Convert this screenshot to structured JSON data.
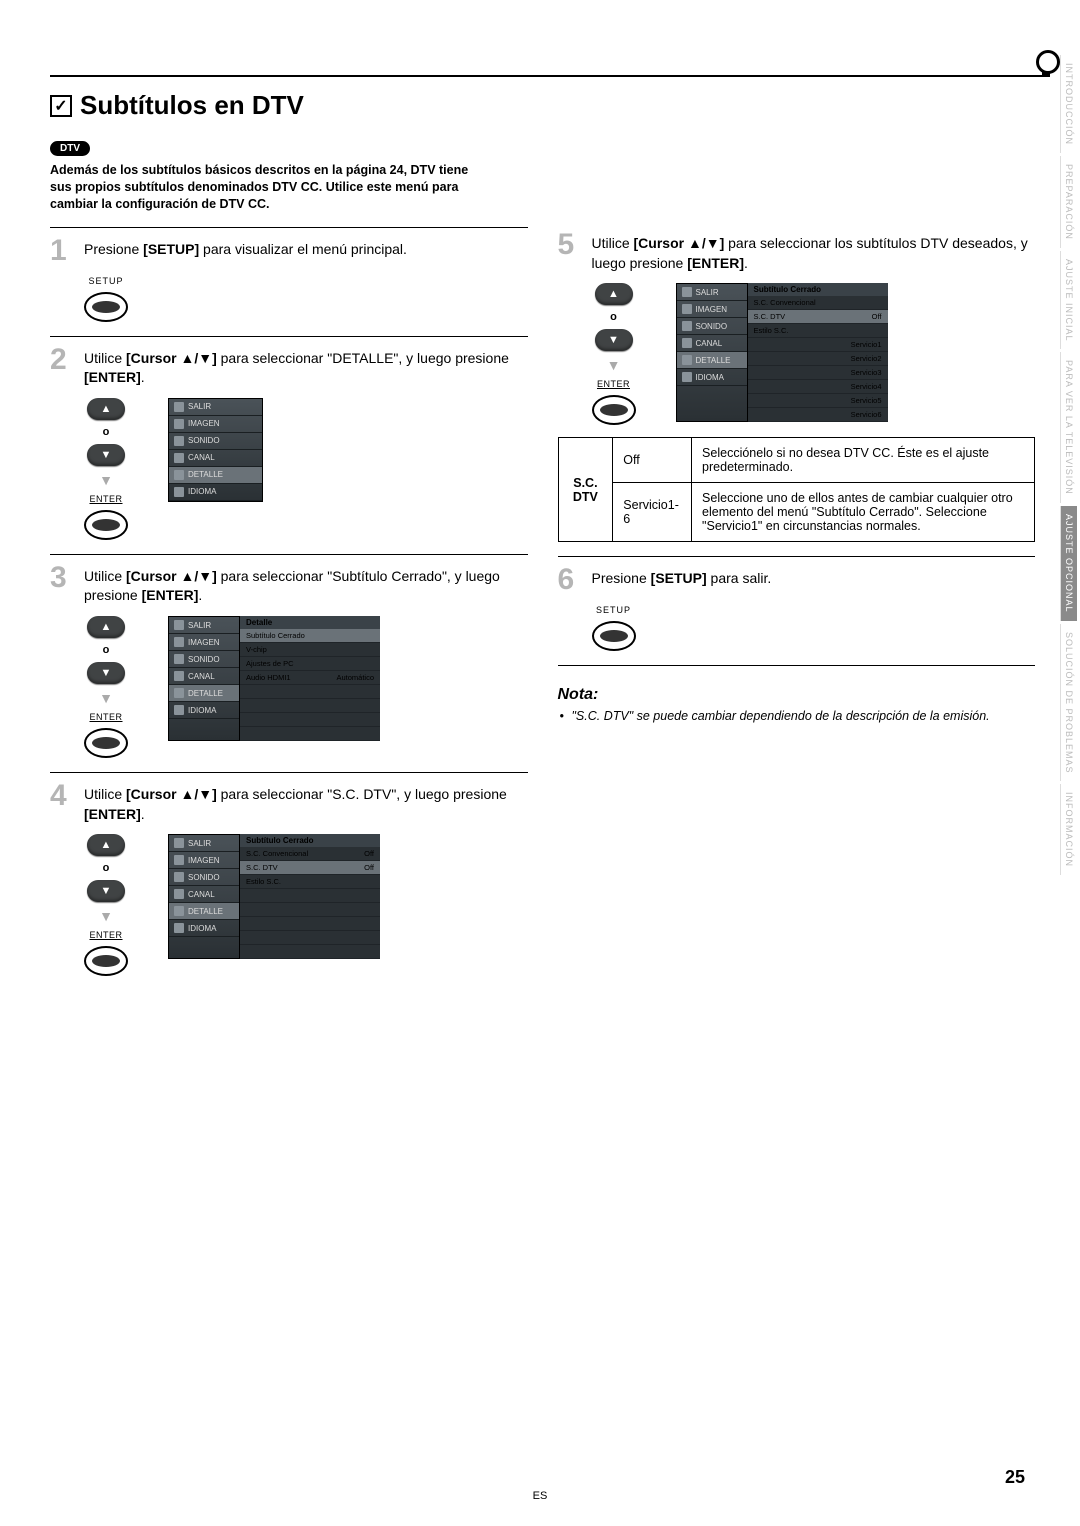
{
  "page": {
    "title": "Subtítulos en DTV",
    "badge": "DTV",
    "intro": "Además de los subtítulos básicos descritos en la página 24, DTV tiene sus propios subtítulos denominados DTV CC. Utilice este menú para cambiar la configuración de DTV CC.",
    "page_num": "25",
    "footer_lang": "ES"
  },
  "tabs": [
    {
      "label": "INTRODUCCIÓN",
      "active": false
    },
    {
      "label": "PREPARACIÓN",
      "active": false
    },
    {
      "label": "AJUSTE INICIAL",
      "active": false
    },
    {
      "label": "PARA VER LA TELEVISIÓN",
      "active": false
    },
    {
      "label": "AJUSTE OPCIONAL",
      "active": true
    },
    {
      "label": "SOLUCIÓN DE PROBLEMAS",
      "active": false
    },
    {
      "label": "INFORMACIÓN",
      "active": false
    }
  ],
  "steps": {
    "s1": {
      "num": "1",
      "text_a": "Presione ",
      "b1": "[SETUP]",
      "text_b": " para visualizar el menú principal."
    },
    "s2": {
      "num": "2",
      "text_a": "Utilice ",
      "b1": "[Cursor ▲/▼]",
      "text_b": " para seleccionar \"DETALLE\", y luego presione ",
      "b2": "[ENTER]",
      "text_c": "."
    },
    "s3": {
      "num": "3",
      "text_a": "Utilice ",
      "b1": "[Cursor ▲/▼]",
      "text_b": " para seleccionar \"Subtítulo Cerrado\", y luego presione ",
      "b2": "[ENTER]",
      "text_c": "."
    },
    "s4": {
      "num": "4",
      "text_a": "Utilice ",
      "b1": "[Cursor ▲/▼]",
      "text_b": " para seleccionar \"S.C. DTV\", y luego presione ",
      "b2": "[ENTER]",
      "text_c": "."
    },
    "s5": {
      "num": "5",
      "text_a": "Utilice ",
      "b1": "[Cursor ▲/▼]",
      "text_b": " para seleccionar los subtítulos DTV deseados, y luego presione ",
      "b2": "[ENTER]",
      "text_c": "."
    },
    "s6": {
      "num": "6",
      "text_a": "Presione ",
      "b1": "[SETUP]",
      "text_b": " para salir."
    }
  },
  "remote": {
    "setup": "SETUP",
    "enter": "ENTER",
    "o": "o",
    "up": "▲",
    "down": "▼"
  },
  "menu_items": {
    "salir": "SALIR",
    "imagen": "IMAGEN",
    "sonido": "SONIDO",
    "canal": "CANAL",
    "detalle": "DETALLE",
    "idioma": "IDIOMA"
  },
  "menu3": {
    "header": "Detalle",
    "rows": [
      {
        "l": "Subtítulo Cerrado",
        "r": "",
        "sel": true
      },
      {
        "l": "V-chip",
        "r": ""
      },
      {
        "l": "Ajustes de PC",
        "r": ""
      },
      {
        "l": "Audio HDMI1",
        "r": "Automático"
      }
    ]
  },
  "menu4": {
    "header": "Subtítulo Cerrado",
    "rows": [
      {
        "l": "S.C. Convencional",
        "r": "Off"
      },
      {
        "l": "S.C. DTV",
        "r": "Off",
        "sel": true
      },
      {
        "l": "Estilo S.C.",
        "r": ""
      }
    ]
  },
  "menu5": {
    "header": "Subtítulo Cerrado",
    "rows": [
      {
        "l": "S.C. Convencional",
        "r": ""
      },
      {
        "l": "S.C. DTV",
        "r": "Off",
        "sel": true
      },
      {
        "l": "Estilo S.C.",
        "r": ""
      }
    ],
    "opts": [
      "Servicio1",
      "Servicio2",
      "Servicio3",
      "Servicio4",
      "Servicio5",
      "Servicio6"
    ]
  },
  "opt_table": {
    "label": "S.C. DTV",
    "r1_a": "Off",
    "r1_b": "Selecciónelo si no desea DTV CC. Éste es el ajuste predeterminado.",
    "r2_a": "Servicio1-6",
    "r2_b": "Seleccione uno de ellos antes de cambiar cualquier otro elemento del menú \"Subtítulo Cerrado\". Seleccione \"Servicio1\" en circunstancias normales."
  },
  "nota": {
    "header": "Nota:",
    "body": "\"S.C. DTV\" se puede cambiar dependiendo de la descripción de la emisión."
  }
}
